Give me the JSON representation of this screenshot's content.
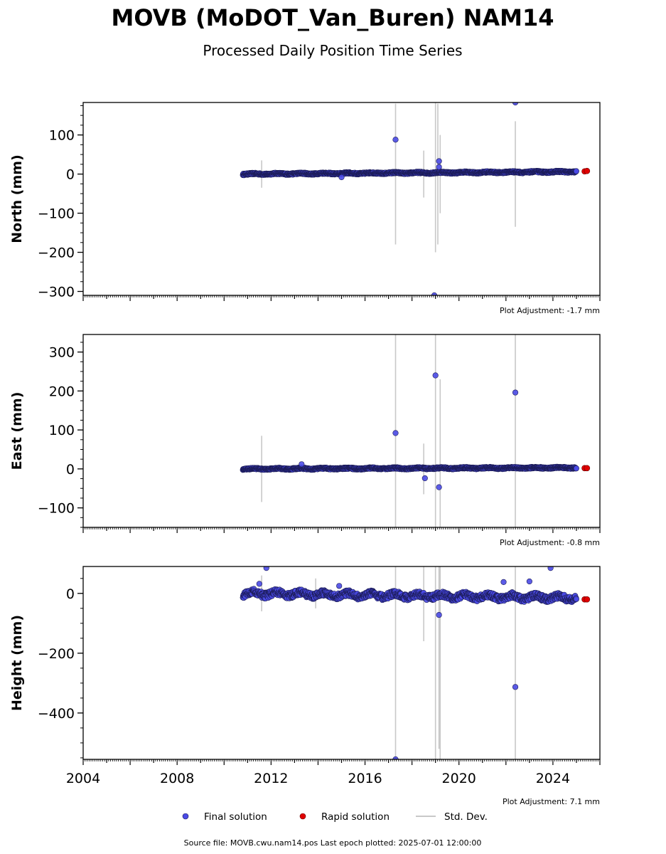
{
  "title": "MOVB (MoDOT_Van_Buren) NAM14",
  "subtitle": "Processed Daily Position Time Series",
  "source_note": "Source file: MOVB.cwu.nam14.pos  Last epoch plotted: 2025-07-01 12:00:00",
  "legend": {
    "final": "Final solution",
    "rapid": "Rapid solution",
    "std": "Std. Dev."
  },
  "colors": {
    "final": "#4a4ae6",
    "final_edge": "#1b1b55",
    "rapid": "#e00000",
    "std": "#c8c8c8"
  },
  "chart_data": [
    {
      "type": "scatter",
      "ylabel": "North (mm)",
      "adjustment": "Plot Adjustment: -1.7 mm",
      "xlim": [
        2004,
        2026
      ],
      "ylim": [
        -310,
        183
      ],
      "yticks": [
        -300,
        -200,
        -100,
        0,
        100
      ],
      "ytick_labels": [
        "−300",
        "−200",
        "−100",
        "0",
        "100"
      ],
      "trend": {
        "start": [
          2010.8,
          0
        ],
        "end": [
          2025.0,
          6
        ],
        "noise": 2
      },
      "outliers": [
        [
          2017.3,
          88
        ],
        [
          2019.15,
          33
        ],
        [
          2019.15,
          18
        ],
        [
          2022.4,
          183
        ],
        [
          2018.95,
          -310
        ],
        [
          2015.0,
          -8
        ]
      ],
      "std_bars": [
        [
          2011.6,
          0,
          35
        ],
        [
          2017.3,
          0,
          180
        ],
        [
          2018.5,
          0,
          60
        ],
        [
          2019.0,
          0,
          200
        ],
        [
          2019.1,
          0,
          180
        ],
        [
          2019.2,
          0,
          100
        ],
        [
          2022.4,
          0,
          135
        ]
      ],
      "rapid": [
        [
          2025.35,
          7
        ],
        [
          2025.45,
          8
        ]
      ]
    },
    {
      "type": "scatter",
      "ylabel": "East (mm)",
      "adjustment": "Plot Adjustment: -0.8 mm",
      "xlim": [
        2004,
        2026
      ],
      "ylim": [
        -150,
        345
      ],
      "yticks": [
        -100,
        0,
        100,
        200,
        300
      ],
      "ytick_labels": [
        "−100",
        "0",
        "100",
        "200",
        "300"
      ],
      "trend": {
        "start": [
          2010.8,
          0
        ],
        "end": [
          2025.0,
          3
        ],
        "noise": 2
      },
      "outliers": [
        [
          2017.3,
          92
        ],
        [
          2019.0,
          240
        ],
        [
          2022.4,
          196
        ],
        [
          2018.55,
          -24
        ],
        [
          2019.15,
          -47
        ],
        [
          2013.3,
          12
        ]
      ],
      "std_bars": [
        [
          2011.6,
          0,
          85
        ],
        [
          2017.3,
          0,
          345
        ],
        [
          2018.5,
          0,
          65
        ],
        [
          2019.0,
          0,
          345
        ],
        [
          2019.2,
          0,
          230
        ],
        [
          2022.4,
          0,
          345
        ]
      ],
      "rapid": [
        [
          2025.35,
          2
        ],
        [
          2025.45,
          2
        ]
      ]
    },
    {
      "type": "scatter",
      "ylabel": "Height (mm)",
      "adjustment": "Plot Adjustment: 7.1 mm",
      "xlim": [
        2004,
        2026
      ],
      "ylim": [
        -555,
        90
      ],
      "yticks": [
        -400,
        -200,
        0
      ],
      "ytick_labels": [
        "−400",
        "−200",
        "0"
      ],
      "xticks": [
        2004,
        2008,
        2012,
        2016,
        2020,
        2024
      ],
      "trend": {
        "start": [
          2010.8,
          0
        ],
        "end": [
          2025.0,
          -15
        ],
        "noise": 10
      },
      "outliers": [
        [
          2011.8,
          85
        ],
        [
          2011.5,
          32
        ],
        [
          2014.9,
          25
        ],
        [
          2019.15,
          -72
        ],
        [
          2022.4,
          -313
        ],
        [
          2017.3,
          -555
        ],
        [
          2023.9,
          85
        ],
        [
          2021.9,
          38
        ],
        [
          2023.0,
          40
        ]
      ],
      "std_bars": [
        [
          2011.6,
          0,
          60
        ],
        [
          2013.9,
          0,
          50
        ],
        [
          2017.3,
          0,
          560
        ],
        [
          2018.5,
          0,
          160
        ],
        [
          2019.0,
          0,
          560
        ],
        [
          2019.15,
          0,
          520
        ],
        [
          2019.2,
          0,
          560
        ],
        [
          2022.4,
          0,
          560
        ]
      ],
      "rapid": [
        [
          2025.35,
          -20
        ],
        [
          2025.45,
          -20
        ]
      ]
    }
  ]
}
